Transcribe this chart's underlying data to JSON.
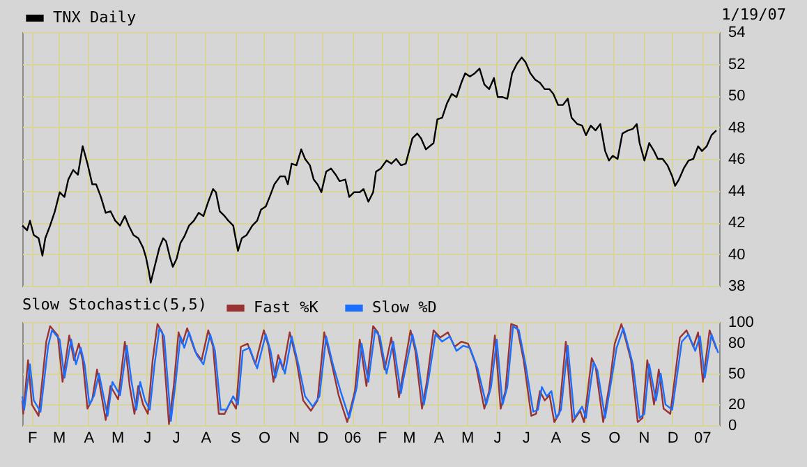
{
  "chart_data": [
    {
      "type": "line",
      "annotations": [
        "1/19/07"
      ],
      "legend": "top left",
      "grid": true,
      "tick_labels": "y",
      "line_style": "solid",
      "xlim": [
        "2005-01-22",
        "2007-01-19"
      ],
      "xticks": [
        {
          "value": "2005-02-01",
          "label": null
        },
        {
          "value": "2005-03-01",
          "label": null
        },
        {
          "value": "2005-04-01",
          "label": null
        },
        {
          "value": "2005-05-01",
          "label": null
        },
        {
          "value": "2005-06-01",
          "label": null
        },
        {
          "value": "2005-07-01",
          "label": null
        },
        {
          "value": "2005-08-01",
          "label": null
        },
        {
          "value": "2005-09-01",
          "label": null
        },
        {
          "value": "2005-10-01",
          "label": null
        },
        {
          "value": "2005-11-01",
          "label": null
        },
        {
          "value": "2005-12-01",
          "label": null
        },
        {
          "value": "2006-01-01",
          "label": null
        },
        {
          "value": "2006-02-01",
          "label": null
        },
        {
          "value": "2006-03-01",
          "label": null
        },
        {
          "value": "2006-04-01",
          "label": null
        },
        {
          "value": "2006-05-01",
          "label": null
        },
        {
          "value": "2006-06-01",
          "label": null
        },
        {
          "value": "2006-07-01",
          "label": null
        },
        {
          "value": "2006-08-01",
          "label": null
        },
        {
          "value": "2006-09-01",
          "label": null
        },
        {
          "value": "2006-10-01",
          "label": null
        },
        {
          "value": "2006-11-01",
          "label": null
        },
        {
          "value": "2006-12-01",
          "label": null
        },
        {
          "value": "2007-01-01",
          "label": null
        }
      ],
      "ylim": [
        38,
        54
      ],
      "yticks": [
        38,
        40,
        42,
        44,
        46,
        48,
        50,
        52,
        54
      ],
      "x": [
        "2005-01-22",
        "2005-01-27",
        "2005-01-30",
        "2005-02-03",
        "2005-02-08",
        "2005-02-12",
        "2005-02-15",
        "2005-02-20",
        "2005-02-25",
        "2005-03-02",
        "2005-03-07",
        "2005-03-11",
        "2005-03-16",
        "2005-03-21",
        "2005-03-26",
        "2005-03-31",
        "2005-04-05",
        "2005-04-09",
        "2005-04-14",
        "2005-04-19",
        "2005-04-24",
        "2005-04-29",
        "2005-05-04",
        "2005-05-09",
        "2005-05-13",
        "2005-05-18",
        "2005-05-23",
        "2005-05-28",
        "2005-05-31",
        "2005-06-03",
        "2005-06-05",
        "2005-06-09",
        "2005-06-14",
        "2005-06-18",
        "2005-06-21",
        "2005-06-25",
        "2005-06-28",
        "2005-07-02",
        "2005-07-06",
        "2005-07-10",
        "2005-07-15",
        "2005-07-20",
        "2005-07-25",
        "2005-07-30",
        "2005-08-04",
        "2005-08-09",
        "2005-08-12",
        "2005-08-16",
        "2005-08-21",
        "2005-08-25",
        "2005-08-30",
        "2005-09-04",
        "2005-09-08",
        "2005-09-13",
        "2005-09-19",
        "2005-09-24",
        "2005-09-28",
        "2005-10-03",
        "2005-10-07",
        "2005-10-12",
        "2005-10-18",
        "2005-10-23",
        "2005-10-26",
        "2005-10-30",
        "2005-11-04",
        "2005-11-09",
        "2005-11-13",
        "2005-11-18",
        "2005-11-22",
        "2005-11-26",
        "2005-11-30",
        "2005-12-05",
        "2005-12-10",
        "2005-12-15",
        "2005-12-19",
        "2005-12-25",
        "2005-12-29",
        "2006-01-03",
        "2006-01-09",
        "2006-01-13",
        "2006-01-18",
        "2006-01-23",
        "2006-01-26",
        "2006-01-31",
        "2006-02-06",
        "2006-02-11",
        "2006-02-16",
        "2006-02-21",
        "2006-02-26",
        "2006-03-05",
        "2006-03-10",
        "2006-03-14",
        "2006-03-19",
        "2006-03-27",
        "2006-03-31",
        "2006-04-05",
        "2006-04-10",
        "2006-04-15",
        "2006-04-20",
        "2006-04-25",
        "2006-04-29",
        "2006-05-04",
        "2006-05-09",
        "2006-05-14",
        "2006-05-19",
        "2006-05-24",
        "2006-05-29",
        "2006-06-02",
        "2006-06-07",
        "2006-06-12",
        "2006-06-17",
        "2006-06-22",
        "2006-06-27",
        "2006-07-01",
        "2006-07-06",
        "2006-07-11",
        "2006-07-16",
        "2006-07-21",
        "2006-07-26",
        "2006-07-30",
        "2006-08-04",
        "2006-08-09",
        "2006-08-14",
        "2006-08-18",
        "2006-08-24",
        "2006-08-29",
        "2006-09-02",
        "2006-09-07",
        "2006-09-12",
        "2006-09-17",
        "2006-09-22",
        "2006-09-26",
        "2006-09-30",
        "2006-10-05",
        "2006-10-10",
        "2006-10-16",
        "2006-10-21",
        "2006-10-25",
        "2006-10-28",
        "2006-11-02",
        "2006-11-07",
        "2006-11-12",
        "2006-11-16",
        "2006-11-21",
        "2006-11-26",
        "2006-12-01",
        "2006-12-04",
        "2006-12-08",
        "2006-12-13",
        "2006-12-18",
        "2006-12-23",
        "2006-12-28",
        "2007-01-01",
        "2007-01-06",
        "2007-01-11",
        "2007-01-16"
      ],
      "series": [
        {
          "name": "TNX Daily",
          "color": "#000000",
          "values": [
            41.8,
            41.5,
            42.1,
            41.2,
            41.0,
            39.9,
            41.0,
            41.8,
            42.7,
            43.9,
            43.6,
            44.7,
            45.3,
            45.0,
            46.8,
            45.7,
            44.4,
            44.4,
            43.6,
            42.6,
            42.7,
            42.1,
            41.8,
            42.4,
            41.8,
            41.2,
            41.0,
            40.4,
            39.8,
            38.9,
            38.2,
            39.2,
            40.4,
            41.0,
            40.8,
            39.8,
            39.2,
            39.7,
            40.7,
            41.1,
            41.8,
            42.1,
            42.6,
            42.4,
            43.3,
            44.1,
            43.9,
            42.7,
            42.4,
            42.1,
            41.8,
            40.2,
            41.0,
            41.2,
            41.8,
            42.1,
            42.8,
            43.0,
            43.6,
            44.4,
            44.9,
            44.9,
            44.4,
            45.7,
            45.6,
            46.6,
            46.0,
            45.6,
            44.7,
            44.4,
            43.9,
            45.2,
            45.4,
            45.0,
            44.6,
            44.7,
            43.6,
            43.9,
            43.9,
            44.1,
            43.3,
            43.9,
            45.2,
            45.4,
            45.9,
            45.7,
            46.0,
            45.6,
            45.7,
            47.3,
            47.6,
            47.3,
            46.6,
            47.0,
            48.5,
            48.6,
            49.5,
            50.1,
            49.9,
            50.8,
            51.4,
            51.2,
            51.4,
            51.7,
            50.7,
            50.4,
            51.1,
            49.9,
            49.9,
            49.8,
            51.4,
            52.0,
            52.4,
            52.1,
            51.4,
            51.0,
            50.8,
            50.4,
            50.4,
            50.1,
            49.4,
            49.4,
            49.8,
            48.6,
            48.2,
            48.1,
            47.5,
            48.1,
            47.8,
            48.2,
            46.5,
            45.9,
            46.2,
            46.0,
            47.6,
            47.8,
            47.9,
            48.2,
            47.0,
            45.9,
            47.0,
            46.5,
            46.0,
            46.0,
            45.6,
            44.9,
            44.3,
            44.7,
            45.4,
            45.9,
            46.0,
            46.8,
            46.5,
            46.8,
            47.5,
            47.8
          ]
        }
      ]
    },
    {
      "type": "line",
      "title": "Slow Stochastic(5,5)",
      "legend": "top left",
      "grid": true,
      "line_style": "solid",
      "xlim": [
        "2005-01-22",
        "2007-01-19"
      ],
      "xticks": [
        {
          "value": "2005-02-01",
          "label": "F"
        },
        {
          "value": "2005-03-01",
          "label": "M"
        },
        {
          "value": "2005-04-01",
          "label": "A"
        },
        {
          "value": "2005-05-01",
          "label": "M"
        },
        {
          "value": "2005-06-01",
          "label": "J"
        },
        {
          "value": "2005-07-01",
          "label": "J"
        },
        {
          "value": "2005-08-01",
          "label": "A"
        },
        {
          "value": "2005-09-01",
          "label": "S"
        },
        {
          "value": "2005-10-01",
          "label": "O"
        },
        {
          "value": "2005-11-01",
          "label": "N"
        },
        {
          "value": "2005-12-01",
          "label": "D"
        },
        {
          "value": "2006-01-01",
          "label": "06"
        },
        {
          "value": "2006-02-01",
          "label": "F"
        },
        {
          "value": "2006-03-01",
          "label": "M"
        },
        {
          "value": "2006-04-01",
          "label": "A"
        },
        {
          "value": "2006-05-01",
          "label": "M"
        },
        {
          "value": "2006-06-01",
          "label": "J"
        },
        {
          "value": "2006-07-01",
          "label": "J"
        },
        {
          "value": "2006-08-01",
          "label": "A"
        },
        {
          "value": "2006-09-01",
          "label": "S"
        },
        {
          "value": "2006-10-01",
          "label": "O"
        },
        {
          "value": "2006-11-01",
          "label": "N"
        },
        {
          "value": "2006-12-01",
          "label": "D"
        },
        {
          "value": "2007-01-01",
          "label": "07"
        }
      ],
      "ylim": [
        0,
        100
      ],
      "yticks": [
        0,
        20,
        50,
        80,
        100
      ],
      "series": [
        {
          "name": "Fast %K",
          "color": "#993333",
          "x": [
            "2005-01-22",
            "2005-01-23",
            "2005-01-28",
            "2005-02-01",
            "2005-02-08",
            "2005-02-16",
            "2005-02-20",
            "2005-02-28",
            "2005-03-05",
            "2005-03-12",
            "2005-03-17",
            "2005-03-22",
            "2005-03-26",
            "2005-03-31",
            "2005-04-05",
            "2005-04-10",
            "2005-04-19",
            "2005-04-24",
            "2005-05-02",
            "2005-05-09",
            "2005-05-14",
            "2005-05-19",
            "2005-05-23",
            "2005-05-28",
            "2005-06-02",
            "2005-06-07",
            "2005-06-12",
            "2005-06-17",
            "2005-06-24",
            "2005-06-29",
            "2005-07-04",
            "2005-07-08",
            "2005-07-13",
            "2005-07-21",
            "2005-07-28",
            "2005-08-04",
            "2005-08-09",
            "2005-08-15",
            "2005-08-21",
            "2005-08-28",
            "2005-09-02",
            "2005-09-07",
            "2005-09-14",
            "2005-09-22",
            "2005-10-01",
            "2005-10-06",
            "2005-10-11",
            "2005-10-16",
            "2005-10-21",
            "2005-10-28",
            "2005-11-04",
            "2005-11-11",
            "2005-11-19",
            "2005-11-26",
            "2005-12-03",
            "2005-12-10",
            "2005-12-18",
            "2005-12-27",
            "2006-01-04",
            "2006-01-09",
            "2006-01-16",
            "2006-01-23",
            "2006-01-28",
            "2006-02-04",
            "2006-02-11",
            "2006-02-19",
            "2006-02-21",
            "2006-03-03",
            "2006-03-08",
            "2006-03-15",
            "2006-03-20",
            "2006-03-27",
            "2006-04-03",
            "2006-04-11",
            "2006-04-18",
            "2006-04-25",
            "2006-05-02",
            "2006-05-10",
            "2006-05-19",
            "2006-05-24",
            "2006-05-30",
            "2006-06-05",
            "2006-06-10",
            "2006-06-16",
            "2006-06-22",
            "2006-06-29",
            "2006-07-07",
            "2006-07-12",
            "2006-07-16",
            "2006-07-21",
            "2006-07-26",
            "2006-07-31",
            "2006-08-05",
            "2006-08-12",
            "2006-08-19",
            "2006-08-27",
            "2006-08-31",
            "2006-09-08",
            "2006-09-12",
            "2006-09-20",
            "2006-09-27",
            "2006-10-02",
            "2006-10-09",
            "2006-10-14",
            "2006-10-19",
            "2006-10-26",
            "2006-10-31",
            "2006-11-05",
            "2006-11-12",
            "2006-11-17",
            "2006-11-22",
            "2006-11-29",
            "2006-12-09",
            "2006-12-16",
            "2006-12-23",
            "2006-12-28",
            "2007-01-02",
            "2007-01-09",
            "2007-01-16"
          ],
          "values": [
            24,
            11,
            63,
            20,
            9,
            81,
            96,
            87,
            42,
            87,
            63,
            79,
            63,
            16,
            25,
            54,
            5,
            38,
            25,
            81,
            38,
            11,
            38,
            20,
            11,
            63,
            98,
            90,
            1,
            38,
            90,
            79,
            94,
            72,
            63,
            92,
            76,
            11,
            11,
            24,
            16,
            76,
            79,
            59,
            92,
            76,
            42,
            68,
            54,
            90,
            63,
            24,
            14,
            24,
            90,
            63,
            29,
            3,
            33,
            83,
            38,
            96,
            90,
            54,
            85,
            27,
            38,
            92,
            72,
            16,
            42,
            92,
            85,
            90,
            76,
            81,
            79,
            59,
            16,
            33,
            87,
            16,
            33,
            98,
            96,
            63,
            9,
            11,
            33,
            24,
            29,
            3,
            11,
            81,
            3,
            14,
            3,
            65,
            57,
            3,
            42,
            79,
            98,
            81,
            63,
            3,
            7,
            63,
            20,
            54,
            16,
            11,
            85,
            92,
            76,
            90,
            42,
            92,
            74
          ]
        },
        {
          "name": "Slow %D",
          "color": "#1a6fff",
          "x": [
            "2005-01-22",
            "2005-01-24",
            "2005-01-30",
            "2005-02-03",
            "2005-02-10",
            "2005-02-18",
            "2005-02-22",
            "2005-03-02",
            "2005-03-07",
            "2005-03-14",
            "2005-03-19",
            "2005-03-24",
            "2005-03-28",
            "2005-04-02",
            "2005-04-07",
            "2005-04-12",
            "2005-04-21",
            "2005-04-26",
            "2005-05-04",
            "2005-05-11",
            "2005-05-16",
            "2005-05-21",
            "2005-05-25",
            "2005-05-30",
            "2005-06-04",
            "2005-06-09",
            "2005-06-14",
            "2005-06-19",
            "2005-06-26",
            "2005-07-01",
            "2005-07-06",
            "2005-07-10",
            "2005-07-15",
            "2005-07-23",
            "2005-07-30",
            "2005-08-06",
            "2005-08-11",
            "2005-08-17",
            "2005-08-23",
            "2005-08-30",
            "2005-09-04",
            "2005-09-09",
            "2005-09-16",
            "2005-09-24",
            "2005-10-03",
            "2005-10-08",
            "2005-10-13",
            "2005-10-18",
            "2005-10-23",
            "2005-10-30",
            "2005-11-06",
            "2005-11-13",
            "2005-11-21",
            "2005-11-28",
            "2005-12-05",
            "2005-12-12",
            "2005-12-20",
            "2005-12-29",
            "2006-01-06",
            "2006-01-11",
            "2006-01-18",
            "2006-01-25",
            "2006-01-30",
            "2006-02-06",
            "2006-02-13",
            "2006-02-21",
            "2006-02-23",
            "2006-03-05",
            "2006-03-10",
            "2006-03-17",
            "2006-03-22",
            "2006-03-29",
            "2006-04-05",
            "2006-04-13",
            "2006-04-20",
            "2006-04-27",
            "2006-05-04",
            "2006-05-12",
            "2006-05-21",
            "2006-05-26",
            "2006-06-01",
            "2006-06-07",
            "2006-06-12",
            "2006-06-18",
            "2006-06-24",
            "2006-07-01",
            "2006-07-09",
            "2006-07-14",
            "2006-07-18",
            "2006-07-23",
            "2006-07-28",
            "2006-08-02",
            "2006-08-07",
            "2006-08-14",
            "2006-08-21",
            "2006-08-29",
            "2006-09-02",
            "2006-09-10",
            "2006-09-14",
            "2006-09-22",
            "2006-09-29",
            "2006-10-04",
            "2006-10-11",
            "2006-10-16",
            "2006-10-21",
            "2006-10-28",
            "2006-11-02",
            "2006-11-07",
            "2006-11-14",
            "2006-11-19",
            "2006-11-24",
            "2006-12-01",
            "2006-12-11",
            "2006-12-18",
            "2006-12-25",
            "2006-12-30",
            "2007-01-04",
            "2007-01-11",
            "2007-01-18"
          ],
          "values": [
            28,
            15,
            59,
            24,
            13,
            77,
            92,
            83,
            46,
            83,
            59,
            75,
            59,
            20,
            29,
            50,
            9,
            42,
            29,
            77,
            42,
            15,
            42,
            24,
            15,
            59,
            94,
            86,
            4,
            42,
            86,
            75,
            90,
            68,
            59,
            88,
            72,
            15,
            15,
            28,
            20,
            72,
            75,
            55,
            88,
            72,
            46,
            64,
            50,
            86,
            59,
            28,
            18,
            28,
            86,
            59,
            33,
            7,
            37,
            79,
            42,
            92,
            86,
            50,
            81,
            31,
            42,
            88,
            68,
            20,
            46,
            88,
            81,
            86,
            72,
            77,
            75,
            55,
            20,
            37,
            83,
            20,
            37,
            96,
            92,
            59,
            13,
            15,
            37,
            28,
            33,
            7,
            15,
            77,
            7,
            18,
            7,
            61,
            53,
            7,
            46,
            75,
            94,
            77,
            59,
            7,
            11,
            59,
            24,
            50,
            20,
            15,
            81,
            88,
            72,
            86,
            46,
            88,
            70
          ]
        }
      ]
    }
  ]
}
